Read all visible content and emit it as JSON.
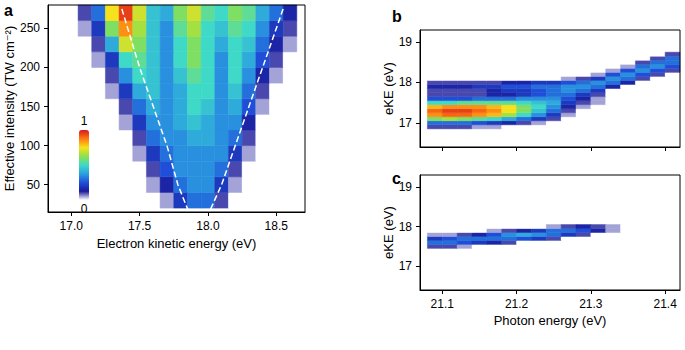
{
  "chart_data": [
    {
      "type": "heatmap",
      "label": "a",
      "x_label": "Electron kinetic energy (eV)",
      "y_label": "Effective intensity (TW cm⁻²)",
      "xlim": [
        16.83,
        18.71
      ],
      "xticks": [
        {
          "value": 17,
          "label": "17.0"
        },
        17.5,
        {
          "value": 18,
          "label": "18.0"
        },
        18.5
      ],
      "ylim": [
        15,
        280
      ],
      "yticks": [
        50,
        100,
        150,
        200,
        250
      ],
      "x": [
        16.9,
        17.0,
        17.1,
        17.2,
        17.3,
        17.4,
        17.5,
        17.6,
        17.7,
        17.8,
        17.9,
        18.0,
        18.1,
        18.2,
        18.3,
        18.4,
        18.5,
        18.6
      ],
      "y": [
        30,
        50,
        70,
        90,
        110,
        130,
        150,
        170,
        190,
        210,
        230,
        250,
        270
      ],
      "z": [
        [
          0,
          0,
          0,
          0,
          0,
          0,
          0,
          0,
          0.05,
          0.2,
          0.3,
          0.3,
          0.1,
          0,
          0,
          0,
          0,
          0
        ],
        [
          0,
          0,
          0,
          0,
          0,
          0,
          0,
          0.05,
          0.15,
          0.3,
          0.35,
          0.35,
          0.2,
          0.05,
          0,
          0,
          0,
          0
        ],
        [
          0,
          0,
          0,
          0,
          0,
          0,
          0,
          0.1,
          0.25,
          0.35,
          0.35,
          0.35,
          0.3,
          0.1,
          0,
          0,
          0,
          0
        ],
        [
          0,
          0,
          0,
          0,
          0,
          0,
          0.05,
          0.2,
          0.3,
          0.35,
          0.35,
          0.35,
          0.35,
          0.2,
          0.05,
          0,
          0,
          0
        ],
        [
          0,
          0,
          0,
          0,
          0,
          0,
          0.1,
          0.3,
          0.35,
          0.35,
          0.4,
          0.4,
          0.35,
          0.3,
          0.1,
          0,
          0,
          0
        ],
        [
          0,
          0,
          0,
          0,
          0,
          0.05,
          0.2,
          0.35,
          0.35,
          0.4,
          0.45,
          0.4,
          0.35,
          0.35,
          0.15,
          0,
          0,
          0
        ],
        [
          0,
          0,
          0,
          0,
          0,
          0.1,
          0.3,
          0.4,
          0.35,
          0.4,
          0.5,
          0.45,
          0.35,
          0.4,
          0.25,
          0.05,
          0,
          0
        ],
        [
          0,
          0,
          0,
          0,
          0.05,
          0.2,
          0.4,
          0.45,
          0.35,
          0.4,
          0.5,
          0.5,
          0.35,
          0.45,
          0.3,
          0.1,
          0,
          0
        ],
        [
          0,
          0,
          0,
          0,
          0.1,
          0.35,
          0.5,
          0.45,
          0.35,
          0.45,
          0.55,
          0.5,
          0.35,
          0.5,
          0.35,
          0.15,
          0.05,
          0
        ],
        [
          0,
          0,
          0,
          0.05,
          0.2,
          0.5,
          0.55,
          0.45,
          0.35,
          0.5,
          0.6,
          0.5,
          0.35,
          0.5,
          0.4,
          0.25,
          0.1,
          0
        ],
        [
          0,
          0,
          0,
          0.1,
          0.4,
          0.7,
          0.6,
          0.45,
          0.35,
          0.5,
          0.6,
          0.5,
          0.4,
          0.5,
          0.45,
          0.3,
          0.15,
          0.05
        ],
        [
          0,
          0,
          0.05,
          0.2,
          0.6,
          0.85,
          0.65,
          0.45,
          0.35,
          0.55,
          0.65,
          0.5,
          0.45,
          0.55,
          0.5,
          0.35,
          0.2,
          0.1
        ],
        [
          0,
          0,
          0.1,
          0.3,
          0.75,
          0.95,
          0.7,
          0.45,
          0.4,
          0.6,
          0.7,
          0.55,
          0.5,
          0.6,
          0.55,
          0.4,
          0.3,
          0.15
        ]
      ],
      "colorbar": {
        "range": [
          0,
          1
        ],
        "ticks": [
          0,
          1
        ],
        "colors": [
          "#ffffff",
          "#1a1a9a",
          "#1f4fd8",
          "#2aa0e0",
          "#3fd9c8",
          "#8fe04a",
          "#f6e21c",
          "#ff7a10",
          "#d7191c"
        ]
      },
      "lines": [
        {
          "x": [
            17.37,
            17.5,
            17.6,
            17.7,
            17.78,
            17.86
          ],
          "y": [
            275,
            200,
            150,
            100,
            50,
            15
          ],
          "color": "#ffffff",
          "line_style": "dashed"
        },
        {
          "x": [
            18.55,
            18.4,
            18.3,
            18.2,
            18.1,
            18.01
          ],
          "y": [
            275,
            200,
            150,
            100,
            50,
            15
          ],
          "color": "#ffffff",
          "line_style": "dashed"
        }
      ]
    },
    {
      "type": "heatmap",
      "label": "b",
      "y_label": "eKE (eV)",
      "xlim": [
        21.07,
        21.42
      ],
      "xticks": [
        21.1,
        21.2,
        21.3,
        21.4
      ],
      "ylim": [
        16.4,
        19.3
      ],
      "yticks": [
        17,
        18,
        19
      ],
      "tick_labels": "y",
      "x": [
        21.09,
        21.11,
        21.13,
        21.15,
        21.17,
        21.19,
        21.21,
        21.23,
        21.25,
        21.27,
        21.29,
        21.31,
        21.33,
        21.35,
        21.37,
        21.39,
        21.41
      ],
      "y": [
        16.9,
        17.0,
        17.1,
        17.2,
        17.3,
        17.4,
        17.5,
        17.6,
        17.7,
        17.8,
        17.9,
        18.0,
        18.1,
        18.2,
        18.3,
        18.4,
        18.5,
        18.6,
        18.7
      ],
      "z": [
        [
          0.1,
          0.1,
          0.1,
          0.05,
          0.05,
          0,
          0,
          0,
          0,
          0,
          0,
          0,
          0,
          0,
          0,
          0,
          0
        ],
        [
          0.3,
          0.3,
          0.3,
          0.25,
          0.2,
          0.15,
          0.1,
          0.05,
          0,
          0,
          0,
          0,
          0,
          0,
          0,
          0,
          0
        ],
        [
          0.6,
          0.65,
          0.6,
          0.55,
          0.5,
          0.4,
          0.3,
          0.2,
          0.1,
          0,
          0,
          0,
          0,
          0,
          0,
          0,
          0
        ],
        [
          0.85,
          0.9,
          0.9,
          0.85,
          0.8,
          0.65,
          0.5,
          0.35,
          0.2,
          0.05,
          0,
          0,
          0,
          0,
          0,
          0,
          0
        ],
        [
          0.9,
          0.95,
          0.95,
          0.9,
          0.85,
          0.75,
          0.6,
          0.45,
          0.3,
          0.1,
          0,
          0,
          0,
          0,
          0,
          0,
          0
        ],
        [
          0.8,
          0.85,
          0.85,
          0.85,
          0.8,
          0.75,
          0.6,
          0.5,
          0.35,
          0.15,
          0.05,
          0,
          0,
          0,
          0,
          0,
          0
        ],
        [
          0.5,
          0.5,
          0.55,
          0.55,
          0.55,
          0.55,
          0.5,
          0.45,
          0.4,
          0.2,
          0.1,
          0.05,
          0,
          0,
          0,
          0,
          0
        ],
        [
          0.25,
          0.25,
          0.25,
          0.3,
          0.3,
          0.3,
          0.35,
          0.35,
          0.35,
          0.25,
          0.15,
          0.05,
          0,
          0,
          0,
          0,
          0
        ],
        [
          0.1,
          0.1,
          0.1,
          0.1,
          0.15,
          0.15,
          0.2,
          0.25,
          0.3,
          0.3,
          0.2,
          0.1,
          0,
          0,
          0,
          0,
          0
        ],
        [
          0.1,
          0.1,
          0.1,
          0.1,
          0.15,
          0.2,
          0.2,
          0.25,
          0.3,
          0.35,
          0.3,
          0.2,
          0,
          0,
          0,
          0,
          0
        ],
        [
          0.15,
          0.15,
          0.15,
          0.2,
          0.2,
          0.25,
          0.25,
          0.3,
          0.3,
          0.35,
          0.35,
          0.3,
          0.15,
          0,
          0,
          0,
          0
        ],
        [
          0.1,
          0.1,
          0.1,
          0.1,
          0.1,
          0.15,
          0.15,
          0.2,
          0.2,
          0.25,
          0.3,
          0.35,
          0.3,
          0.15,
          0,
          0,
          0
        ],
        [
          0,
          0,
          0,
          0,
          0,
          0,
          0,
          0,
          0,
          0.05,
          0.1,
          0.2,
          0.35,
          0.3,
          0.1,
          0,
          0
        ],
        [
          0,
          0,
          0,
          0,
          0,
          0,
          0,
          0,
          0,
          0,
          0,
          0.05,
          0.25,
          0.35,
          0.25,
          0.1,
          0
        ],
        [
          0,
          0,
          0,
          0,
          0,
          0,
          0,
          0,
          0,
          0,
          0,
          0,
          0.05,
          0.25,
          0.35,
          0.25,
          0.1
        ],
        [
          0,
          0,
          0,
          0,
          0,
          0,
          0,
          0,
          0,
          0,
          0,
          0,
          0,
          0.05,
          0.3,
          0.35,
          0.25
        ],
        [
          0,
          0,
          0,
          0,
          0,
          0,
          0,
          0,
          0,
          0,
          0,
          0,
          0,
          0,
          0.1,
          0.3,
          0.3
        ],
        [
          0,
          0,
          0,
          0,
          0,
          0,
          0,
          0,
          0,
          0,
          0,
          0,
          0,
          0,
          0,
          0.1,
          0.3
        ],
        [
          0,
          0,
          0,
          0,
          0,
          0,
          0,
          0,
          0,
          0,
          0,
          0,
          0,
          0,
          0,
          0,
          0.1
        ]
      ]
    },
    {
      "type": "heatmap",
      "label": "c",
      "x_label": "Photon energy (eV)",
      "y_label": "eKE (eV)",
      "xlim": [
        21.07,
        21.42
      ],
      "xticks": [
        21.1,
        21.2,
        21.3,
        21.4
      ],
      "ylim": [
        16.4,
        19.3
      ],
      "yticks": [
        17,
        18,
        19
      ],
      "x": [
        21.09,
        21.11,
        21.13,
        21.15,
        21.17,
        21.19,
        21.21,
        21.23,
        21.25,
        21.27,
        21.29,
        21.31,
        21.33,
        21.35,
        21.37,
        21.39,
        21.41
      ],
      "y": [
        17.5,
        17.6,
        17.7,
        17.8,
        17.9,
        18.0
      ],
      "z": [
        [
          0.1,
          0.1,
          0.05,
          0,
          0,
          0,
          0,
          0,
          0,
          0,
          0,
          0,
          0,
          0,
          0,
          0,
          0
        ],
        [
          0.3,
          0.3,
          0.25,
          0.2,
          0.15,
          0.1,
          0,
          0,
          0,
          0,
          0,
          0,
          0,
          0,
          0,
          0,
          0
        ],
        [
          0.2,
          0.25,
          0.3,
          0.3,
          0.3,
          0.3,
          0.25,
          0.2,
          0.1,
          0,
          0,
          0,
          0,
          0,
          0,
          0,
          0
        ],
        [
          0.05,
          0.05,
          0.1,
          0.15,
          0.25,
          0.35,
          0.4,
          0.35,
          0.3,
          0.2,
          0.1,
          0,
          0,
          0,
          0,
          0,
          0
        ],
        [
          0,
          0,
          0,
          0,
          0.05,
          0.1,
          0.15,
          0.2,
          0.3,
          0.3,
          0.25,
          0.15,
          0.05,
          0,
          0,
          0,
          0
        ],
        [
          0,
          0,
          0,
          0,
          0,
          0,
          0,
          0,
          0.05,
          0.1,
          0.15,
          0.1,
          0.05,
          0,
          0,
          0,
          0
        ]
      ]
    }
  ]
}
